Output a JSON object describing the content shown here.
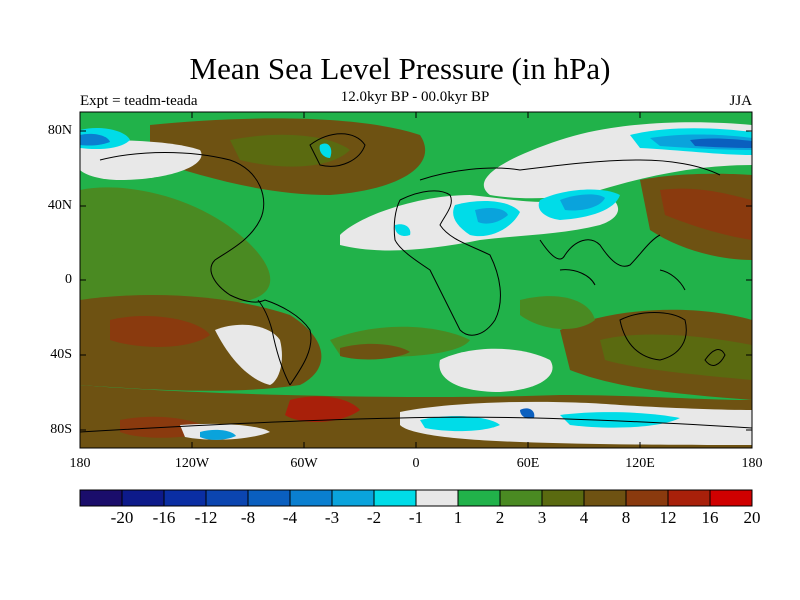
{
  "header": {
    "title": "Mean Sea Level Pressure (in hPa)",
    "experiment": "Expt = teadm-teada",
    "period": "12.0kyr BP - 00.0kyr BP",
    "season": "JJA"
  },
  "map": {
    "lat_labels": [
      "80N",
      "40N",
      "0",
      "40S",
      "80S"
    ],
    "lon_labels": [
      "180",
      "120W",
      "60W",
      "0",
      "60E",
      "120E",
      "180"
    ],
    "lon_range": [
      -180,
      180
    ],
    "lat_range": [
      -90,
      90
    ]
  },
  "colorbar": {
    "labels": [
      "-20",
      "-16",
      "-12",
      "-8",
      "-4",
      "-3",
      "-2",
      "-1",
      "1",
      "2",
      "3",
      "4",
      "8",
      "12",
      "16",
      "20"
    ],
    "colors": [
      "#1a0d6b",
      "#0d1a8a",
      "#0a2ea3",
      "#0b45b0",
      "#0a5fbf",
      "#0a7fd0",
      "#0aa3dc",
      "#00dce8",
      "#e8e8e8",
      "#21b24a",
      "#4a8a22",
      "#5a6a10",
      "#6e5212",
      "#8a3a0e",
      "#a8200a",
      "#d00000"
    ]
  }
}
